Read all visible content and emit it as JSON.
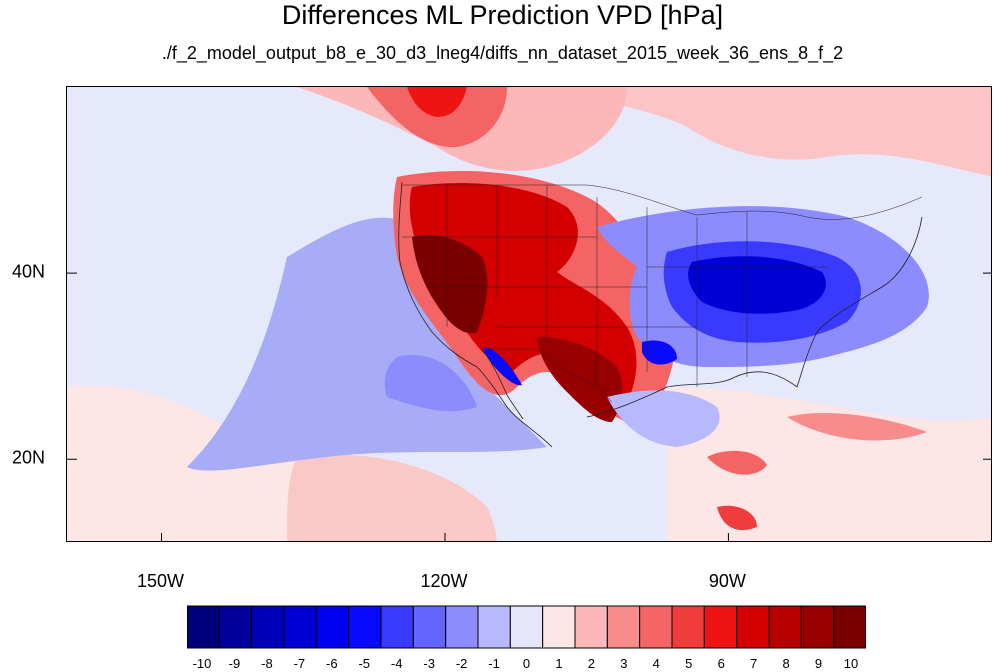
{
  "title": "Differences ML Prediction VPD [hPa]",
  "subtitle": "./f_2_model_output_b8_e_30_d3_lneg4/diffs_nn_dataset_2015_week_36_ens_8_f_2",
  "map": {
    "projection": "cylindrical",
    "lon_range": [
      -160,
      -62
    ],
    "lat_range": [
      11,
      60
    ],
    "x_ticks": [
      {
        "lon": -150,
        "label": "150W"
      },
      {
        "lon": -120,
        "label": "120W"
      },
      {
        "lon": -90,
        "label": "90W"
      }
    ],
    "y_ticks": [
      {
        "lat": 40,
        "label": "40N"
      },
      {
        "lat": 20,
        "label": "20N"
      }
    ],
    "background_level": "-1 to 0",
    "regions": [
      {
        "name": "western-us-positive-anomaly",
        "sign": "positive",
        "max_level": "10"
      },
      {
        "name": "great-lakes-ohio-negative-anomaly",
        "sign": "negative",
        "max_level": "-6"
      },
      {
        "name": "eastern-pacific-negative-band",
        "sign": "negative",
        "max_level": "-3"
      },
      {
        "name": "northern-canada-positive-band",
        "sign": "positive",
        "max_level": "6"
      },
      {
        "name": "mexico-positive-anomaly",
        "sign": "positive",
        "max_level": "9"
      },
      {
        "name": "gulf-of-california-negative-streak",
        "sign": "negative",
        "max_level": "-6"
      }
    ]
  },
  "colorbar": {
    "labels": [
      "-10",
      "-9",
      "-8",
      "-7",
      "-6",
      "-5",
      "-4",
      "-3",
      "-2",
      "-1",
      "0",
      "1",
      "2",
      "3",
      "4",
      "5",
      "6",
      "7",
      "8",
      "9",
      "10"
    ],
    "colors": [
      "#00007a",
      "#00009b",
      "#0000b8",
      "#0000d6",
      "#0000f0",
      "#0a0aff",
      "#3a3aff",
      "#6464ff",
      "#8c8cff",
      "#b8b8ff",
      "#e6e6fa",
      "#fde6e6",
      "#fcb8b8",
      "#f88c8c",
      "#f46464",
      "#f03c3c",
      "#ee1414",
      "#d40000",
      "#b60000",
      "#980000",
      "#7a0000"
    ]
  }
}
